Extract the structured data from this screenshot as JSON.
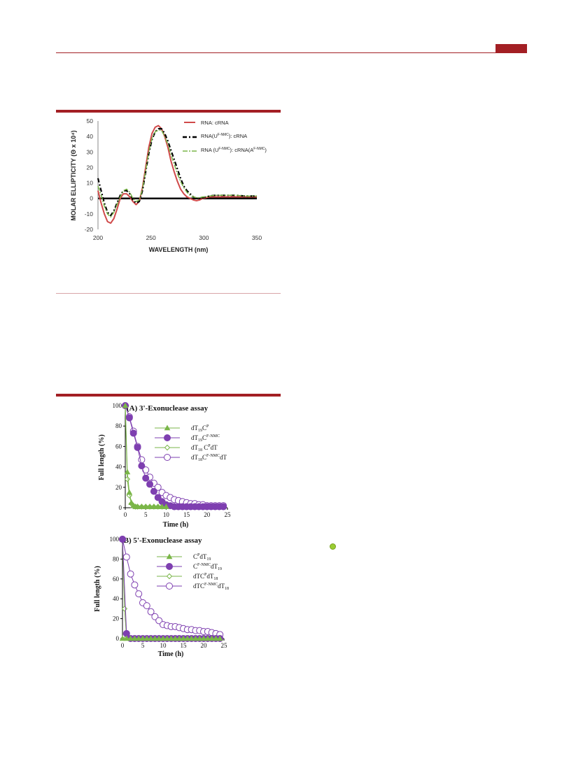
{
  "colors": {
    "accent": "#a31f24",
    "rule": "#d8a5a7",
    "red_series": "#d04a4a",
    "green_series": "#7ab648",
    "purple_series": "#7e3fb0",
    "dot": "#9acd32"
  },
  "chart_data": [
    {
      "type": "line",
      "xlabel": "WAVELENGTH (nm)",
      "ylabel": "MOLAR ELLIPTICITY (Θ x 10⁴)",
      "xlim": [
        200,
        350
      ],
      "ylim": [
        -20,
        50
      ],
      "xticks": [
        "200",
        "250",
        "300",
        "350"
      ],
      "yticks": [
        "-20",
        "-10",
        "0",
        "10",
        "20",
        "30",
        "40",
        "50"
      ],
      "legend": [
        "RNA: cRNA",
        "RNA(U",
        "F-NMC",
        "): cRNA",
        "RNA (U",
        "F-NMC",
        "): cRNA(A",
        "F-NMC",
        ")"
      ],
      "series": [
        {
          "x": [
            200,
            203,
            206,
            209,
            212,
            215,
            218,
            221,
            224,
            227,
            230,
            233,
            236,
            239,
            242,
            245,
            248,
            251,
            254,
            257,
            260,
            263,
            266,
            269,
            272,
            275,
            278,
            281,
            284,
            287,
            290,
            293,
            296,
            299,
            302,
            305,
            310,
            320,
            330,
            340,
            350
          ],
          "y": [
            5,
            -3,
            -10,
            -15,
            -16,
            -13,
            -7,
            0,
            3,
            3,
            1,
            -2,
            -4,
            -2,
            7,
            20,
            33,
            42,
            46,
            47,
            45,
            40,
            33,
            24,
            17,
            11,
            6,
            3,
            1,
            0,
            -1,
            -1.5,
            -1,
            0,
            0.5,
            1,
            1,
            1,
            1,
            1,
            1
          ]
        },
        {
          "x": [
            200,
            203,
            206,
            209,
            212,
            215,
            218,
            221,
            224,
            227,
            230,
            233,
            236,
            239,
            242,
            245,
            248,
            251,
            254,
            257,
            260,
            263,
            266,
            269,
            272,
            275,
            278,
            281,
            284,
            287,
            290,
            293,
            296,
            299,
            302,
            305,
            310,
            320,
            330,
            340,
            350
          ],
          "y": [
            13,
            5,
            -3,
            -9,
            -11,
            -8,
            -3,
            2,
            5,
            5,
            3,
            -1,
            -3,
            -2,
            5,
            17,
            29,
            38,
            43,
            45,
            45,
            42,
            37,
            31,
            25,
            19,
            13,
            8,
            5,
            3,
            1,
            0,
            0,
            0.5,
            1,
            1.5,
            2,
            2,
            2,
            1.5,
            1.5
          ]
        },
        {
          "x": [
            200,
            203,
            206,
            209,
            212,
            215,
            218,
            221,
            224,
            227,
            230,
            233,
            236,
            239,
            242,
            245,
            248,
            251,
            254,
            257,
            260,
            263,
            266,
            269,
            272,
            275,
            278,
            281,
            284,
            287,
            290,
            293,
            296,
            299,
            302,
            305,
            310,
            320,
            330,
            340,
            350
          ],
          "y": [
            8,
            2,
            -5,
            -10,
            -12,
            -9,
            -4,
            1,
            5,
            6,
            4,
            0,
            -2,
            -1,
            6,
            18,
            30,
            39,
            43,
            44,
            44,
            40,
            35,
            28,
            22,
            16,
            11,
            7,
            4,
            2,
            1,
            0.5,
            0.5,
            1,
            1,
            1.5,
            2,
            2,
            2,
            1.5,
            1.5
          ]
        }
      ]
    },
    {
      "type": "line",
      "title": "(A) 3'-Exonuclease assay",
      "xlabel": "Time (h)",
      "ylabel": "Full length  (%)",
      "xlim": [
        0,
        25
      ],
      "ylim": [
        0,
        100
      ],
      "xticks": [
        "0",
        "5",
        "10",
        "15",
        "20",
        "25"
      ],
      "yticks": [
        "0",
        "20",
        "40",
        "60",
        "80",
        "100"
      ],
      "legend": [
        {
          "base": "dT",
          "sub": "19",
          "mid": "C",
          "sup": "P",
          "tail": "",
          "tailsub": ""
        },
        {
          "base": "dT",
          "sub": "19",
          "mid": "C",
          "sup": "F-NMC",
          "tail": "",
          "tailsub": ""
        },
        {
          "base": "dT",
          "sub": "18",
          "mid": " C",
          "sup": "P",
          "tail": "dT",
          "tailsub": ""
        },
        {
          "base": "dT",
          "sub": "18",
          "mid": "C",
          "sup": "F-NMC",
          "tail": "dT",
          "tailsub": ""
        }
      ],
      "series": [
        {
          "x": [
            0,
            0.5,
            1,
            1.5,
            2,
            2.5,
            3,
            4,
            5,
            6,
            7,
            8,
            9,
            10
          ],
          "y": [
            100,
            35,
            15,
            5,
            2,
            1,
            1,
            1,
            1,
            1,
            1,
            1,
            1,
            1
          ]
        },
        {
          "x": [
            0,
            1,
            2,
            3,
            4,
            5,
            6,
            7,
            8,
            9,
            10,
            11,
            12,
            13,
            14,
            15,
            16,
            17,
            18,
            19,
            20,
            21,
            22,
            23,
            24
          ],
          "y": [
            100,
            88,
            73,
            59,
            41,
            29,
            23,
            16,
            10,
            6,
            3,
            2,
            1,
            1,
            1,
            1,
            1,
            1,
            1,
            1,
            1,
            1,
            1,
            1,
            1
          ]
        },
        {
          "x": [
            0,
            0.5,
            1,
            1.5,
            2,
            2.5,
            3,
            4,
            5,
            6,
            7,
            8,
            9,
            10
          ],
          "y": [
            100,
            28,
            12,
            4,
            2,
            1,
            1,
            1,
            1,
            1,
            1,
            1,
            1,
            1
          ]
        },
        {
          "x": [
            0,
            1,
            2,
            3,
            4,
            5,
            6,
            7,
            8,
            9,
            10,
            11,
            12,
            13,
            14,
            15,
            16,
            17,
            18,
            19,
            20,
            21,
            22,
            23,
            24
          ],
          "y": [
            100,
            89,
            75,
            60,
            47,
            37,
            30,
            24,
            20,
            15,
            12,
            10,
            8,
            7,
            6,
            5,
            4,
            4,
            3,
            3,
            2,
            2,
            2,
            2,
            2
          ]
        }
      ]
    },
    {
      "type": "line",
      "title": "(B) 5'-Exonuclease assay",
      "xlabel": "Time (h)",
      "ylabel": "Full length  (%)",
      "xlim": [
        0,
        25
      ],
      "ylim": [
        0,
        100
      ],
      "xticks": [
        "0",
        "5",
        "10",
        "15",
        "20",
        "25"
      ],
      "yticks": [
        "0",
        "20",
        "40",
        "60",
        "80",
        "100"
      ],
      "legend": [
        {
          "base": "C",
          "sub": "",
          "mid": "",
          "sup": "P",
          "tail": "dT",
          "tailsub": "19"
        },
        {
          "base": "C",
          "sub": "",
          "mid": "",
          "sup": "F-NMC",
          "tail": "dT",
          "tailsub": "19"
        },
        {
          "base": "dTC",
          "sub": "",
          "mid": "",
          "sup": "P",
          "tail": "dT",
          "tailsub": "18"
        },
        {
          "base": "dTC",
          "sub": "",
          "mid": "",
          "sup": "F-NMC",
          "tail": "dT",
          "tailsub": "18"
        }
      ],
      "series": [
        {
          "x": [
            0,
            1,
            2,
            3,
            4,
            5,
            6,
            7,
            8,
            9,
            10,
            11,
            12,
            13,
            14,
            15,
            16,
            17,
            18,
            19,
            20,
            21,
            22,
            23,
            24
          ],
          "y": [
            0,
            0,
            0,
            0,
            0,
            0,
            0,
            0,
            0,
            0,
            0,
            0,
            0,
            0,
            0,
            0,
            0,
            0,
            0,
            0,
            0,
            0,
            0,
            0,
            0
          ]
        },
        {
          "x": [
            0,
            1,
            2,
            3,
            4,
            5,
            6,
            7,
            8,
            9,
            10,
            11,
            12,
            13,
            14,
            15,
            16,
            17,
            18,
            19,
            20,
            21,
            22,
            23,
            24
          ],
          "y": [
            100,
            5,
            0,
            0,
            0,
            0,
            0,
            0,
            0,
            0,
            0,
            0,
            0,
            0,
            0,
            0,
            0,
            0,
            0,
            0,
            0,
            0,
            0,
            0,
            0
          ]
        },
        {
          "x": [
            0,
            0.5,
            1,
            2,
            3,
            4,
            5,
            6,
            7,
            8,
            9,
            10,
            11,
            12,
            13,
            14,
            15,
            16,
            17,
            18,
            19,
            20,
            21,
            22,
            23,
            24
          ],
          "y": [
            100,
            30,
            1,
            0,
            0,
            0,
            0,
            0,
            0,
            0,
            0,
            0,
            0,
            0,
            0,
            0,
            0,
            0,
            0,
            0,
            0,
            0,
            0,
            0,
            0,
            0
          ]
        },
        {
          "x": [
            0,
            1,
            2,
            3,
            4,
            5,
            6,
            7,
            8,
            9,
            10,
            11,
            12,
            13,
            14,
            15,
            16,
            17,
            18,
            19,
            20,
            21,
            22,
            23,
            24
          ],
          "y": [
            100,
            82,
            65,
            54,
            45,
            36,
            33,
            27,
            22,
            18,
            14,
            13,
            12,
            12,
            11,
            10,
            9,
            9,
            8,
            8,
            7,
            7,
            6,
            5,
            4
          ]
        }
      ]
    }
  ]
}
